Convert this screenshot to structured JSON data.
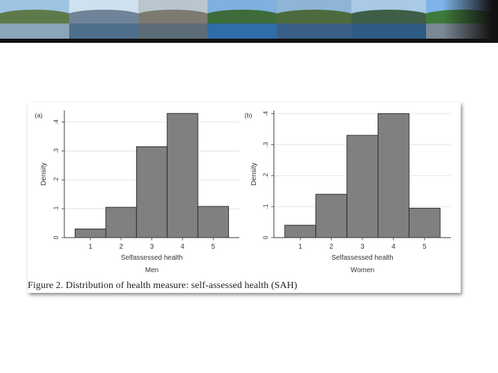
{
  "banner": {
    "photos": [
      {
        "sky": "#9fc3e3",
        "hill": "#5f7a4a",
        "water": "#8aa4b8"
      },
      {
        "sky": "#cfe0ef",
        "hill": "#6f8499",
        "water": "#4d6f8c"
      },
      {
        "sky": "#b9c6cf",
        "hill": "#7d7a70",
        "water": "#5c6c78"
      },
      {
        "sky": "#7fb0de",
        "hill": "#3d6b3a",
        "water": "#2f6da8"
      },
      {
        "sky": "#8fb5d6",
        "hill": "#4c6a3d",
        "water": "#3a5f86"
      },
      {
        "sky": "#a9c9e6",
        "hill": "#3e5f45",
        "water": "#2e5b84"
      },
      {
        "sky": "#7db3e8",
        "hill": "#3e7a3c",
        "water": "#7a8794"
      }
    ]
  },
  "figure": {
    "caption": "Figure 2. Distribution of health measure: self-assessed health (SAH)"
  },
  "chart_data": [
    {
      "type": "bar",
      "panel": "(a)",
      "categories": [
        "1",
        "2",
        "3",
        "4",
        "5"
      ],
      "values": [
        0.03,
        0.105,
        0.315,
        0.43,
        0.108
      ],
      "xlabel": "Selfassessed health",
      "subtitle": "Men",
      "ylabel": "Density",
      "yticks": [
        0,
        0.1,
        0.2,
        0.3,
        0.4
      ],
      "ytick_labels": [
        "0",
        ".1",
        ".2",
        ".3",
        ".4"
      ],
      "ylim": [
        0,
        0.44
      ],
      "grid": true,
      "bar_color": "#808080"
    },
    {
      "type": "bar",
      "panel": "(b)",
      "categories": [
        "1",
        "2",
        "3",
        "4",
        "5"
      ],
      "values": [
        0.04,
        0.14,
        0.33,
        0.4,
        0.095
      ],
      "xlabel": "Selfassessed health",
      "subtitle": "Women",
      "ylabel": "Density",
      "yticks": [
        0,
        0.1,
        0.2,
        0.3,
        0.4
      ],
      "ytick_labels": [
        "0",
        ".1",
        ".2",
        ".3",
        ".4"
      ],
      "ylim": [
        0,
        0.41
      ],
      "grid": true,
      "bar_color": "#808080"
    }
  ]
}
